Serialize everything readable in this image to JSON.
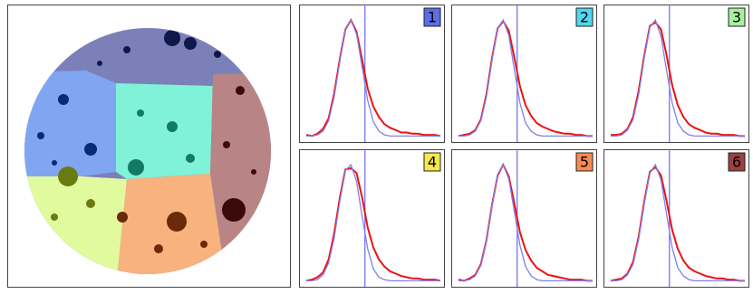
{
  "chart_data": [
    {
      "type": "line",
      "label": "1",
      "label_color": "#5a6ee8",
      "x": [
        0,
        1,
        2,
        3,
        4,
        5,
        6,
        7,
        8,
        9,
        10,
        11,
        12,
        13,
        14,
        15,
        16,
        17,
        18,
        19,
        20,
        21,
        22,
        23,
        24
      ],
      "xlim": [
        0,
        24
      ],
      "ylim": [
        0,
        1.1
      ],
      "vline": 10.5,
      "series": [
        {
          "color": "#ee1111",
          "values": [
            0.03,
            0.02,
            0.04,
            0.08,
            0.17,
            0.38,
            0.67,
            0.92,
            1.0,
            0.9,
            0.66,
            0.42,
            0.27,
            0.18,
            0.12,
            0.09,
            0.07,
            0.05,
            0.05,
            0.04,
            0.04,
            0.03,
            0.03,
            0.03,
            0.02
          ]
        },
        {
          "color": "#8080f0",
          "values": [
            0.02,
            0.02,
            0.03,
            0.06,
            0.15,
            0.35,
            0.65,
            0.92,
            1.0,
            0.88,
            0.6,
            0.32,
            0.14,
            0.06,
            0.03,
            0.02,
            0.02,
            0.02,
            0.02,
            0.02,
            0.02,
            0.02,
            0.02,
            0.02,
            0.02
          ]
        }
      ]
    },
    {
      "type": "line",
      "label": "2",
      "label_color": "#4fd8f0",
      "x": [
        0,
        1,
        2,
        3,
        4,
        5,
        6,
        7,
        8,
        9,
        10,
        11,
        12,
        13,
        14,
        15,
        16,
        17,
        18,
        19,
        20,
        21,
        22,
        23,
        24
      ],
      "xlim": [
        0,
        24
      ],
      "ylim": [
        0,
        1.1
      ],
      "vline": 10.5,
      "series": [
        {
          "color": "#ee1111",
          "values": [
            0.02,
            0.03,
            0.04,
            0.07,
            0.16,
            0.37,
            0.68,
            0.93,
            0.99,
            0.91,
            0.68,
            0.44,
            0.28,
            0.19,
            0.13,
            0.1,
            0.08,
            0.06,
            0.05,
            0.04,
            0.04,
            0.03,
            0.03,
            0.02,
            0.02
          ]
        },
        {
          "color": "#8080f0",
          "values": [
            0.02,
            0.02,
            0.03,
            0.06,
            0.15,
            0.35,
            0.66,
            0.93,
            1.0,
            0.87,
            0.58,
            0.3,
            0.13,
            0.06,
            0.03,
            0.02,
            0.02,
            0.02,
            0.02,
            0.02,
            0.02,
            0.02,
            0.02,
            0.02,
            0.02
          ]
        }
      ]
    },
    {
      "type": "line",
      "label": "3",
      "label_color": "#a8f0a0",
      "x": [
        0,
        1,
        2,
        3,
        4,
        5,
        6,
        7,
        8,
        9,
        10,
        11,
        12,
        13,
        14,
        15,
        16,
        17,
        18,
        19,
        20,
        21,
        22,
        23,
        24
      ],
      "xlim": [
        0,
        24
      ],
      "ylim": [
        0,
        1.1
      ],
      "vline": 10.5,
      "series": [
        {
          "color": "#ee1111",
          "values": [
            0.03,
            0.03,
            0.04,
            0.08,
            0.18,
            0.4,
            0.7,
            0.95,
            0.98,
            0.92,
            0.7,
            0.45,
            0.28,
            0.18,
            0.12,
            0.09,
            0.07,
            0.05,
            0.04,
            0.04,
            0.03,
            0.03,
            0.03,
            0.02,
            0.02
          ]
        },
        {
          "color": "#8080f0",
          "values": [
            0.02,
            0.02,
            0.03,
            0.07,
            0.16,
            0.37,
            0.68,
            0.94,
            1.0,
            0.86,
            0.57,
            0.3,
            0.13,
            0.06,
            0.03,
            0.02,
            0.02,
            0.02,
            0.02,
            0.02,
            0.02,
            0.02,
            0.02,
            0.02,
            0.02
          ]
        }
      ]
    },
    {
      "type": "line",
      "label": "4",
      "label_color": "#f5e84a",
      "x": [
        0,
        1,
        2,
        3,
        4,
        5,
        6,
        7,
        8,
        9,
        10,
        11,
        12,
        13,
        14,
        15,
        16,
        17,
        18,
        19,
        20,
        21,
        22,
        23,
        24
      ],
      "xlim": [
        0,
        24
      ],
      "ylim": [
        0,
        1.1
      ],
      "vline": 10.5,
      "series": [
        {
          "color": "#ee1111",
          "values": [
            0.02,
            0.03,
            0.05,
            0.09,
            0.2,
            0.42,
            0.72,
            0.96,
            0.97,
            0.93,
            0.72,
            0.47,
            0.3,
            0.2,
            0.14,
            0.1,
            0.08,
            0.06,
            0.05,
            0.04,
            0.04,
            0.03,
            0.03,
            0.03,
            0.02
          ]
        },
        {
          "color": "#8080f0",
          "values": [
            0.02,
            0.02,
            0.03,
            0.07,
            0.17,
            0.38,
            0.69,
            0.95,
            1.0,
            0.86,
            0.56,
            0.29,
            0.12,
            0.05,
            0.03,
            0.02,
            0.02,
            0.02,
            0.02,
            0.02,
            0.02,
            0.02,
            0.02,
            0.02,
            0.02
          ]
        }
      ]
    },
    {
      "type": "line",
      "label": "5",
      "label_color": "#f98a50",
      "x": [
        0,
        1,
        2,
        3,
        4,
        5,
        6,
        7,
        8,
        9,
        10,
        11,
        12,
        13,
        14,
        15,
        16,
        17,
        18,
        19,
        20,
        21,
        22,
        23,
        24
      ],
      "xlim": [
        0,
        24
      ],
      "ylim": [
        0,
        1.1
      ],
      "vline": 10.5,
      "series": [
        {
          "color": "#ee1111",
          "values": [
            0.03,
            0.02,
            0.04,
            0.07,
            0.16,
            0.36,
            0.66,
            0.91,
            1.0,
            0.9,
            0.67,
            0.43,
            0.28,
            0.19,
            0.13,
            0.1,
            0.07,
            0.06,
            0.05,
            0.04,
            0.03,
            0.03,
            0.03,
            0.02,
            0.02
          ]
        },
        {
          "color": "#8080f0",
          "values": [
            0.02,
            0.02,
            0.03,
            0.06,
            0.15,
            0.35,
            0.65,
            0.92,
            1.0,
            0.88,
            0.6,
            0.32,
            0.14,
            0.06,
            0.03,
            0.02,
            0.02,
            0.02,
            0.02,
            0.02,
            0.02,
            0.02,
            0.02,
            0.02,
            0.02
          ]
        }
      ]
    },
    {
      "type": "line",
      "label": "6",
      "label_color": "#9a4040",
      "x": [
        0,
        1,
        2,
        3,
        4,
        5,
        6,
        7,
        8,
        9,
        10,
        11,
        12,
        13,
        14,
        15,
        16,
        17,
        18,
        19,
        20,
        21,
        22,
        23,
        24
      ],
      "xlim": [
        0,
        24
      ],
      "ylim": [
        0,
        1.1
      ],
      "vline": 10.5,
      "series": [
        {
          "color": "#ee1111",
          "values": [
            0.02,
            0.03,
            0.04,
            0.08,
            0.18,
            0.39,
            0.69,
            0.94,
            0.98,
            0.91,
            0.69,
            0.45,
            0.29,
            0.19,
            0.13,
            0.1,
            0.08,
            0.06,
            0.05,
            0.04,
            0.04,
            0.03,
            0.03,
            0.02,
            0.02
          ]
        },
        {
          "color": "#8080f0",
          "values": [
            0.02,
            0.02,
            0.03,
            0.07,
            0.16,
            0.37,
            0.67,
            0.93,
            1.0,
            0.87,
            0.58,
            0.3,
            0.13,
            0.06,
            0.03,
            0.02,
            0.02,
            0.02,
            0.02,
            0.02,
            0.02,
            0.02,
            0.02,
            0.02,
            0.02
          ]
        }
      ]
    }
  ]
}
